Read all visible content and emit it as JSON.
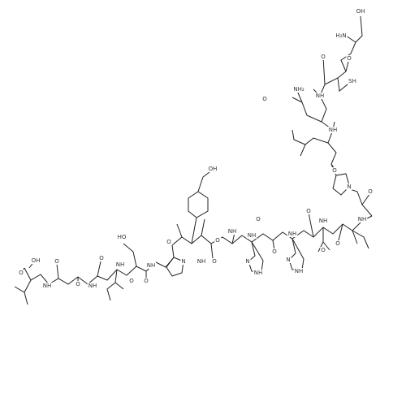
{
  "structure": {
    "atom_labels": [
      "OH",
      "O",
      "NH",
      "O",
      "O",
      "NH",
      "O",
      "NH",
      "O",
      "HO",
      "NH",
      "O",
      "N",
      "O",
      "NH",
      "O",
      "OH",
      "NH",
      "O",
      "N",
      "NH",
      "NH",
      "O",
      "O",
      "N",
      "NH",
      "NH",
      "O",
      "O",
      "NH",
      "O",
      "N",
      "O",
      "NH",
      "O",
      "NH",
      "O",
      "NH₂",
      "NH",
      "O",
      "O",
      "SH",
      "H₂N",
      "OH"
    ]
  }
}
